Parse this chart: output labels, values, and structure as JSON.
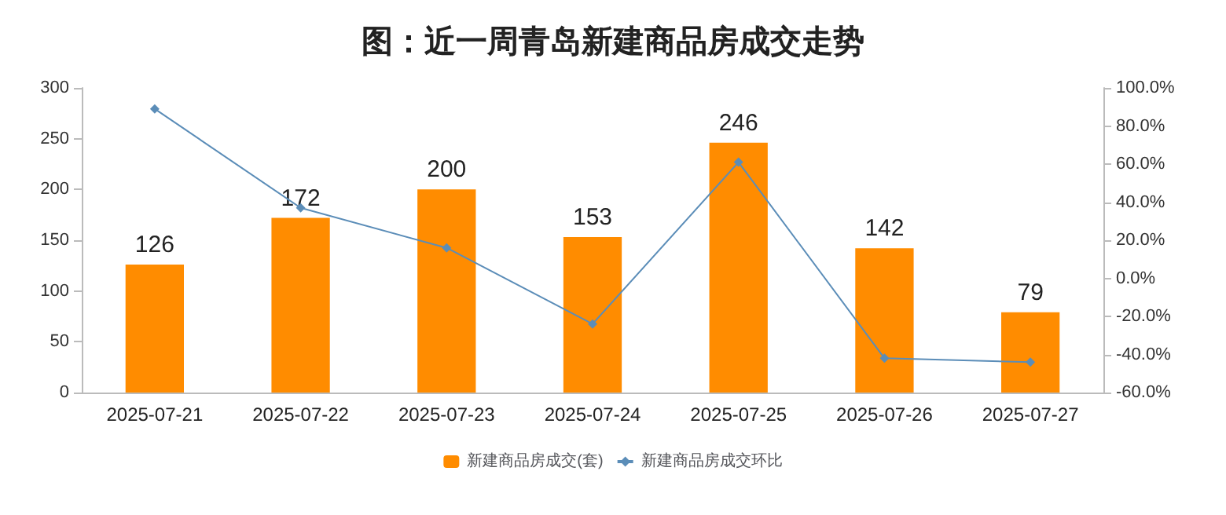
{
  "chart_data": {
    "type": "bar",
    "title": "图：近一周青岛新建商品房成交走势",
    "categories": [
      "2025-07-21",
      "2025-07-22",
      "2025-07-23",
      "2025-07-24",
      "2025-07-25",
      "2025-07-26",
      "2025-07-27"
    ],
    "series": [
      {
        "name": "新建商品房成交(套)",
        "color": "#ff8c00",
        "values": [
          126,
          172,
          200,
          153,
          246,
          142,
          79
        ],
        "value_labels": [
          "126",
          "172",
          "200",
          "153",
          "246",
          "142",
          "79"
        ]
      },
      {
        "name": "新建商品房成交环比",
        "type": "line",
        "axis": "y2",
        "color": "#5b8db8",
        "marker": "diamond",
        "values": [
          89,
          37,
          16,
          -24,
          61,
          -42,
          -44
        ]
      }
    ],
    "ylim": [
      0,
      300
    ],
    "yticks": [
      0,
      50,
      100,
      150,
      200,
      250,
      300
    ],
    "y2lim": [
      -60,
      100
    ],
    "y2ticks": [
      {
        "value": -60,
        "label": "-60.0%"
      },
      {
        "value": -40,
        "label": "-40.0%"
      },
      {
        "value": -20,
        "label": "-20.0%"
      },
      {
        "value": 0,
        "label": "0.0%"
      },
      {
        "value": 20,
        "label": "20.0%"
      },
      {
        "value": 40,
        "label": "40.0%"
      },
      {
        "value": 60,
        "label": "60.0%"
      },
      {
        "value": 80,
        "label": "80.0%"
      },
      {
        "value": 100,
        "label": "100.0%"
      }
    ],
    "legend": "bottom",
    "grid": false
  }
}
